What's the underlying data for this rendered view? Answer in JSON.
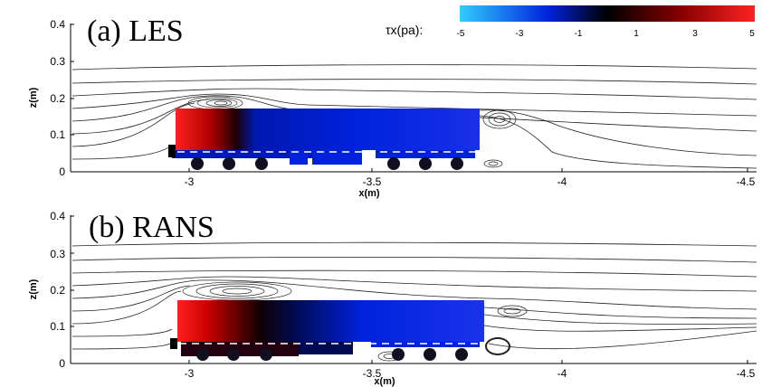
{
  "colorbar": {
    "title": "τx(pa):",
    "ticks": [
      "-5",
      "-3",
      "-1",
      "1",
      "3",
      "5"
    ],
    "colors": {
      "low": "#33ccff",
      "mid_low": "#0022dd",
      "zero": "#000000",
      "mid_high": "#880000",
      "high": "#ff2222"
    }
  },
  "chart_data": [
    {
      "type": "diagram",
      "panel_label": "(a) LES",
      "xlabel": "x(m)",
      "ylabel": "z(m)",
      "x_ticks": [
        "-3",
        "-3.5",
        "-4",
        "-4.5"
      ],
      "y_ticks": [
        "0.4",
        "0.3",
        "0.2",
        "0.1",
        "0"
      ]
    },
    {
      "type": "diagram",
      "panel_label": "(b) RANS",
      "xlabel": "x(m)",
      "ylabel": "z(m)",
      "x_ticks": [
        "-3",
        "-3.5",
        "-4",
        "-4.5"
      ],
      "y_ticks": [
        "0.4",
        "0.3",
        "0.2",
        "0.1",
        "0"
      ]
    }
  ]
}
